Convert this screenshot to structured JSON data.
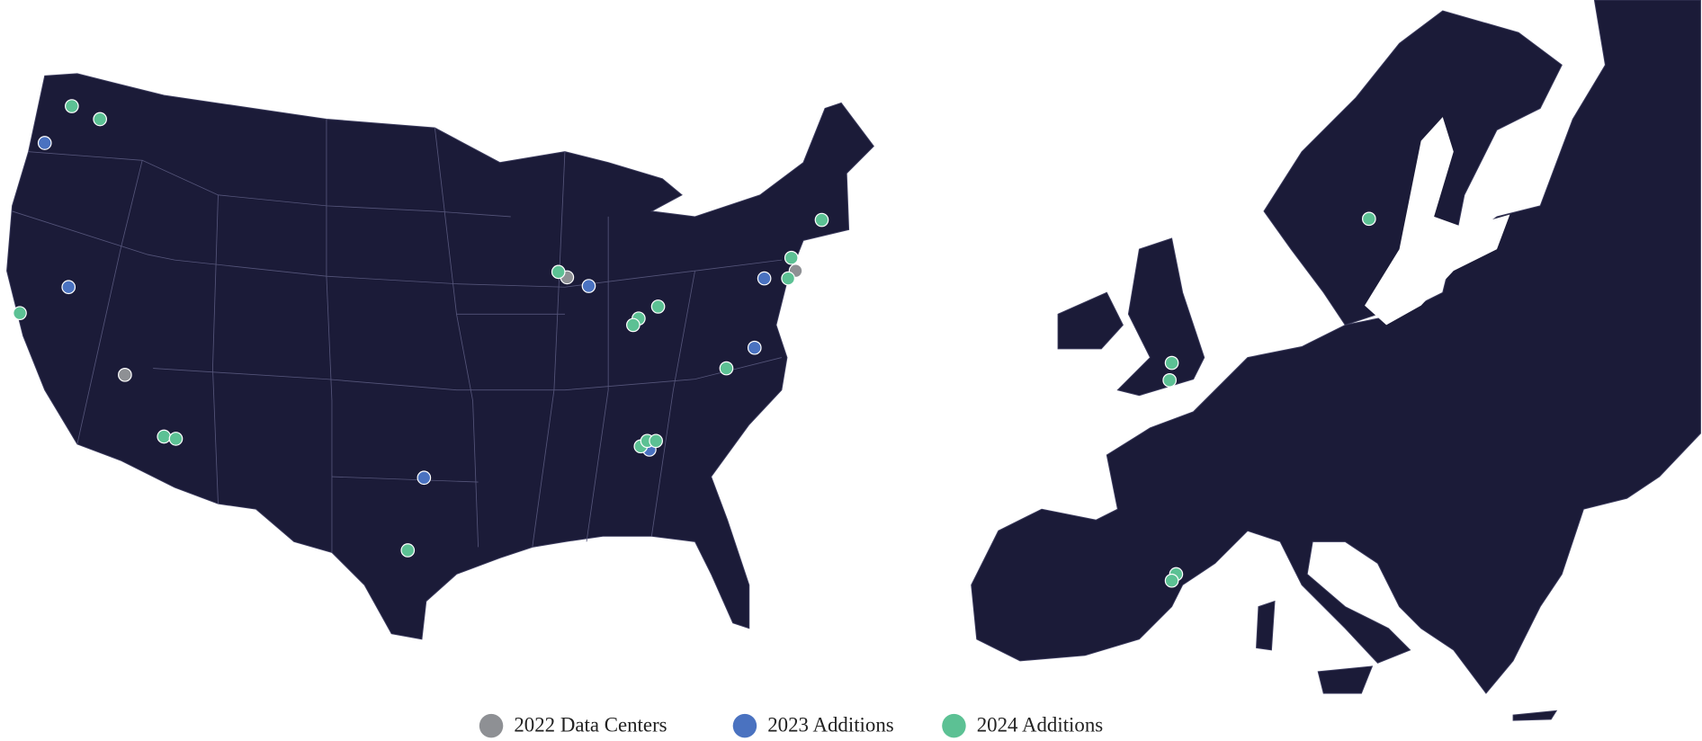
{
  "legend": {
    "items": [
      {
        "label": "2022 Data Centers",
        "color": "#8e9094"
      },
      {
        "label": "2023 Additions",
        "color": "#4a72c0"
      },
      {
        "label": "2024 Additions",
        "color": "#5cc194"
      }
    ]
  }
}
